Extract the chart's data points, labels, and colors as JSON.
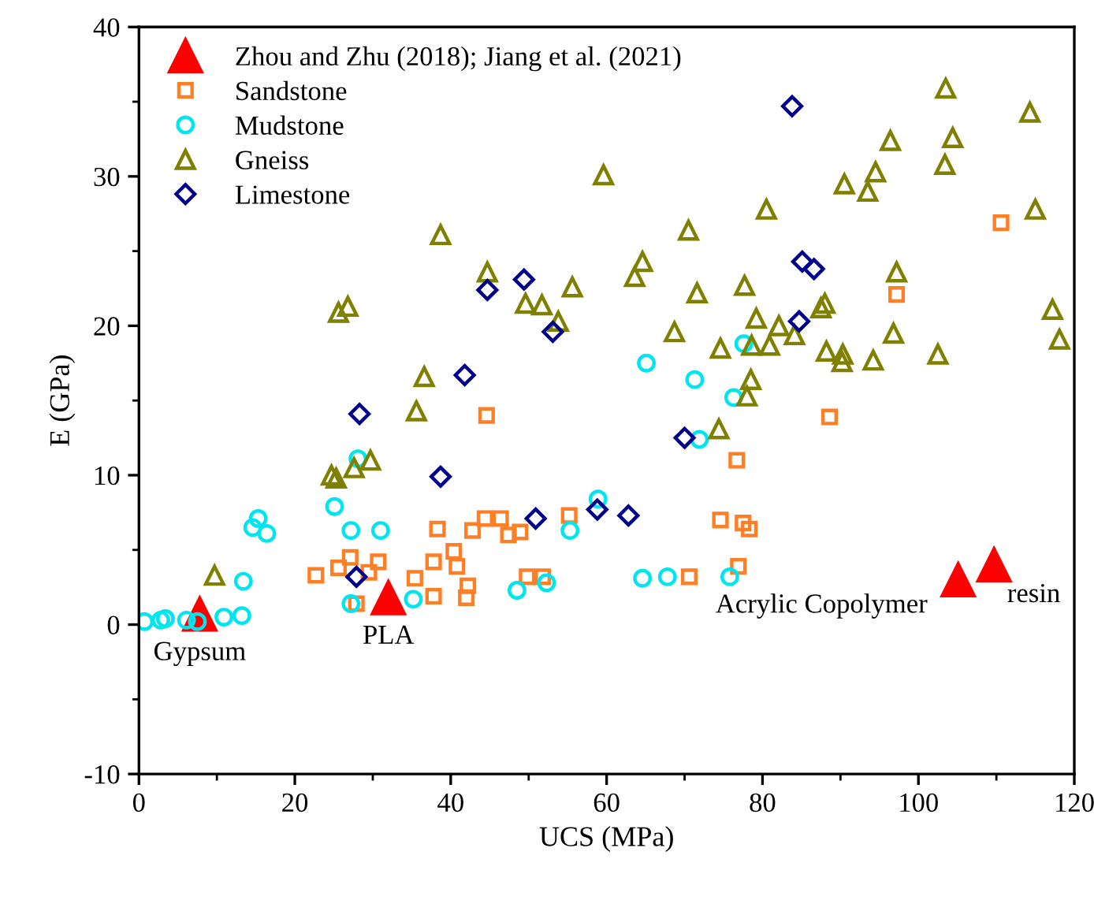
{
  "chart_data": {
    "type": "scatter",
    "xlabel": "UCS (MPa)",
    "ylabel": "E (GPa)",
    "xlim": [
      0,
      120
    ],
    "ylim": [
      -10,
      40
    ],
    "xticks": [
      0,
      20,
      40,
      60,
      80,
      100,
      120
    ],
    "yticks": [
      -10,
      0,
      10,
      20,
      30,
      40
    ],
    "grid": false,
    "legend": "top left",
    "series": [
      {
        "name": "Zhou and Zhu (2018); Jiang et al. (2021)",
        "color": "#ff0000",
        "marker": "triangle",
        "x": [
          7.8,
          32.0,
          105.1,
          109.7
        ],
        "values": [
          0.7,
          1.8,
          3.0,
          4.0
        ]
      },
      {
        "name": "Sandstone",
        "color": "#ff7f27",
        "marker": "square",
        "x": [
          22.7,
          25.6,
          27.1,
          29.5,
          30.7,
          27.9,
          35.4,
          37.8,
          38.3,
          37.8,
          40.4,
          40.8,
          42.2,
          42.0,
          42.8,
          44.4,
          44.6,
          46.4,
          47.4,
          48.9,
          49.8,
          51.8,
          55.2,
          74.6,
          77.5,
          78.3,
          76.9,
          70.6,
          76.7,
          88.6,
          110.6,
          97.2
        ],
        "values": [
          3.3,
          3.8,
          4.5,
          3.5,
          4.2,
          1.4,
          3.1,
          4.2,
          6.4,
          1.9,
          4.9,
          3.9,
          2.6,
          1.8,
          6.3,
          7.1,
          14.0,
          7.1,
          6.0,
          6.2,
          3.2,
          3.2,
          7.3,
          7.0,
          6.8,
          6.4,
          3.9,
          3.2,
          11.0,
          13.9,
          26.9,
          22.1
        ]
      },
      {
        "name": "Mudstone",
        "color": "#00e5ee",
        "marker": "circle",
        "x": [
          0.7,
          2.8,
          3.4,
          6.1,
          7.5,
          10.9,
          13.2,
          13.4,
          14.6,
          15.3,
          16.4,
          25.1,
          27.2,
          31.0,
          27.2,
          35.2,
          28.1,
          48.5,
          52.3,
          55.3,
          58.9,
          64.6,
          67.8,
          75.8,
          71.9,
          76.3,
          71.3,
          65.1,
          77.6
        ],
        "values": [
          0.2,
          0.3,
          0.4,
          0.3,
          0.2,
          0.5,
          0.6,
          2.9,
          6.5,
          7.1,
          6.1,
          7.9,
          6.3,
          6.3,
          1.4,
          1.7,
          11.1,
          2.3,
          2.8,
          6.3,
          8.4,
          3.1,
          3.2,
          3.2,
          12.4,
          15.2,
          16.4,
          17.5,
          18.8
        ]
      },
      {
        "name": "Gneiss",
        "color": "#808000",
        "marker": "triangle",
        "x": [
          9.7,
          24.7,
          25.3,
          27.6,
          29.7,
          35.6,
          36.6,
          59.6,
          38.7,
          25.6,
          26.8,
          44.7,
          49.6,
          51.7,
          55.6,
          53.8,
          74.4,
          78.0,
          78.5,
          103.5,
          114.3,
          96.4,
          104.4,
          103.4,
          94.5,
          90.5,
          93.5,
          80.5,
          115.0,
          70.5,
          64.6,
          63.6,
          71.6,
          77.7,
          97.2,
          88.0,
          87.5,
          117.2,
          118.1,
          79.2,
          82.1,
          96.8,
          68.7,
          74.6,
          78.6,
          80.9,
          84.1,
          88.2,
          90.3,
          90.2,
          94.2,
          102.5
        ],
        "values": [
          3.3,
          10.0,
          9.8,
          10.5,
          11.0,
          14.3,
          16.6,
          30.1,
          26.1,
          20.9,
          21.3,
          23.6,
          21.5,
          21.4,
          22.6,
          20.3,
          13.1,
          15.3,
          16.4,
          35.9,
          34.3,
          32.4,
          32.6,
          30.8,
          30.3,
          29.5,
          29.0,
          27.8,
          27.8,
          26.4,
          24.3,
          23.3,
          22.2,
          22.7,
          23.6,
          21.5,
          21.2,
          21.1,
          19.1,
          20.5,
          20.0,
          19.5,
          19.6,
          18.5,
          18.7,
          18.7,
          19.4,
          18.3,
          18.1,
          17.6,
          17.7,
          18.1
        ]
      },
      {
        "name": "Limestone",
        "color": "#00008b",
        "marker": "diamond",
        "x": [
          28.3,
          38.7,
          27.9,
          44.7,
          49.4,
          53.1,
          41.8,
          50.9,
          58.8,
          62.8,
          70.0,
          83.8,
          85.1,
          86.6,
          84.7
        ],
        "values": [
          14.1,
          9.9,
          3.2,
          22.4,
          23.1,
          19.6,
          16.7,
          7.1,
          7.7,
          7.3,
          12.5,
          34.7,
          24.3,
          23.8,
          20.3
        ]
      }
    ],
    "annotations": [
      {
        "text": "Gypsum",
        "x": 7.8,
        "y": 0.7
      },
      {
        "text": "PLA",
        "x": 32.0,
        "y": 1.8
      },
      {
        "text": "Acrylic Copolymer",
        "x": 105.1,
        "y": 3.0
      },
      {
        "text": "resin",
        "x": 109.7,
        "y": 4.0
      }
    ]
  }
}
